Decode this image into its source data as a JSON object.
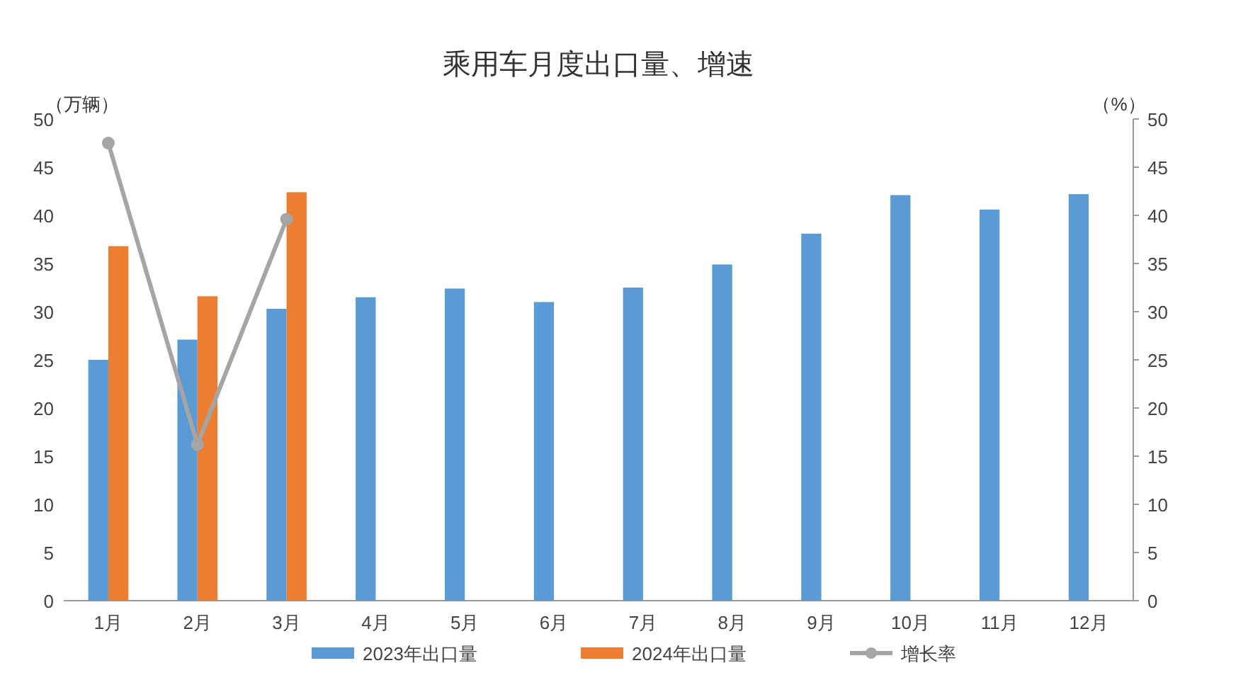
{
  "chart_data": {
    "type": "bar",
    "title": "乘用车月度出口量、增速",
    "ylabel": "（万辆）",
    "y2label": "（%）",
    "categories": [
      "1月",
      "2月",
      "3月",
      "4月",
      "5月",
      "6月",
      "7月",
      "8月",
      "9月",
      "10月",
      "11月",
      "12月"
    ],
    "series": [
      {
        "name": "2023年出口量",
        "type": "bar",
        "color": "#5b9bd5",
        "values": [
          25,
          27.1,
          30.3,
          31.5,
          32.4,
          31,
          32.5,
          34.9,
          38.1,
          42.1,
          40.6,
          42.2
        ]
      },
      {
        "name": "2024年出口量",
        "type": "bar",
        "color": "#ed7d31",
        "values": [
          36.8,
          31.6,
          42.4,
          null,
          null,
          null,
          null,
          null,
          null,
          null,
          null,
          null
        ]
      },
      {
        "name": "增长率",
        "type": "line",
        "axis": "y2",
        "color": "#a5a5a5",
        "marker": "circle",
        "values": [
          47.5,
          16.2,
          39.6,
          null,
          null,
          null,
          null,
          null,
          null,
          null,
          null,
          null
        ]
      }
    ],
    "ylim": [
      0,
      50
    ],
    "yticks": [
      0,
      5,
      10,
      15,
      20,
      25,
      30,
      35,
      40,
      45,
      50
    ],
    "y2lim": [
      0,
      50
    ],
    "y2ticks": [
      0,
      5,
      10,
      15,
      20,
      25,
      30,
      35,
      40,
      45,
      50
    ],
    "legend": "bottom"
  }
}
